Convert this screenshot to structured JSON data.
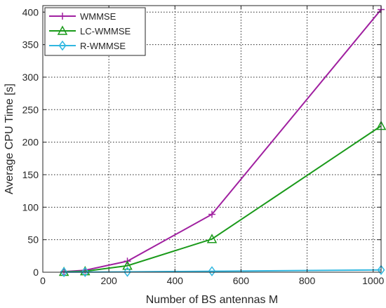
{
  "chart_data": {
    "type": "line",
    "title": "",
    "xlabel": "Number of BS antennas M",
    "ylabel": "Average CPU Time [s]",
    "xlim": [
      0,
      1024
    ],
    "ylim": [
      0,
      410
    ],
    "xticks": [
      0,
      200,
      400,
      600,
      800,
      1000
    ],
    "yticks": [
      0,
      50,
      100,
      150,
      200,
      250,
      300,
      350,
      400
    ],
    "grid": true,
    "legend_position": "top-left",
    "series": [
      {
        "name": "WMMSE",
        "color": "#a020a0",
        "marker": "plus",
        "x": [
          64,
          128,
          256,
          512,
          1024
        ],
        "y": [
          1,
          3,
          17,
          89,
          404
        ]
      },
      {
        "name": "LC-WMMSE",
        "color": "#1a9a1a",
        "marker": "triangle",
        "x": [
          64,
          128,
          256,
          512,
          1024
        ],
        "y": [
          0.5,
          1.5,
          10,
          51,
          225
        ]
      },
      {
        "name": "R-WMMSE",
        "color": "#31b7e0",
        "marker": "diamond",
        "x": [
          64,
          128,
          256,
          512,
          1024
        ],
        "y": [
          0.2,
          0.3,
          0.6,
          1.5,
          3.5
        ]
      }
    ]
  }
}
